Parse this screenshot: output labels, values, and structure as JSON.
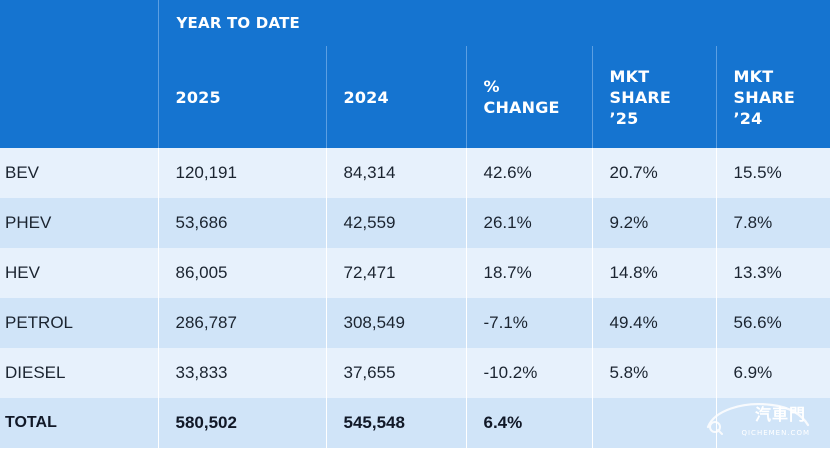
{
  "chart_data": {
    "type": "table",
    "group_header": "YEAR TO DATE",
    "columns": [
      "",
      "2025",
      "2024",
      "% CHANGE",
      "MKT SHARE ’25",
      "MKT SHARE ’24"
    ],
    "column_lines": [
      [],
      [
        "2025"
      ],
      [
        "2024"
      ],
      [
        "%",
        "CHANGE"
      ],
      [
        "MKT",
        "SHARE",
        "’25"
      ],
      [
        "MKT",
        "SHARE",
        "’24"
      ]
    ],
    "rows": [
      {
        "label": "BEV",
        "y2025": "120,191",
        "y2024": "84,314",
        "change": "42.6%",
        "share25": "20.7%",
        "share24": "15.5%"
      },
      {
        "label": "PHEV",
        "y2025": "53,686",
        "y2024": "42,559",
        "change": "26.1%",
        "share25": "9.2%",
        "share24": "7.8%"
      },
      {
        "label": "HEV",
        "y2025": "86,005",
        "y2024": "72,471",
        "change": "18.7%",
        "share25": "14.8%",
        "share24": "13.3%"
      },
      {
        "label": "PETROL",
        "y2025": "286,787",
        "y2024": "308,549",
        "change": "-7.1%",
        "share25": "49.4%",
        "share24": "56.6%"
      },
      {
        "label": "DIESEL",
        "y2025": "33,833",
        "y2024": "37,655",
        "change": "-10.2%",
        "share25": "5.8%",
        "share24": "6.9%"
      },
      {
        "label": "TOTAL",
        "y2025": "580,502",
        "y2024": "545,548",
        "change": "6.4%",
        "share25": "",
        "share24": ""
      }
    ]
  },
  "watermark": {
    "text": "汽車門",
    "subtext": "QICHEMEN.COM"
  },
  "colors": {
    "header_bg": "#1574d0",
    "row_light": "#e7f1fc",
    "row_dark": "#d0e4f8"
  }
}
